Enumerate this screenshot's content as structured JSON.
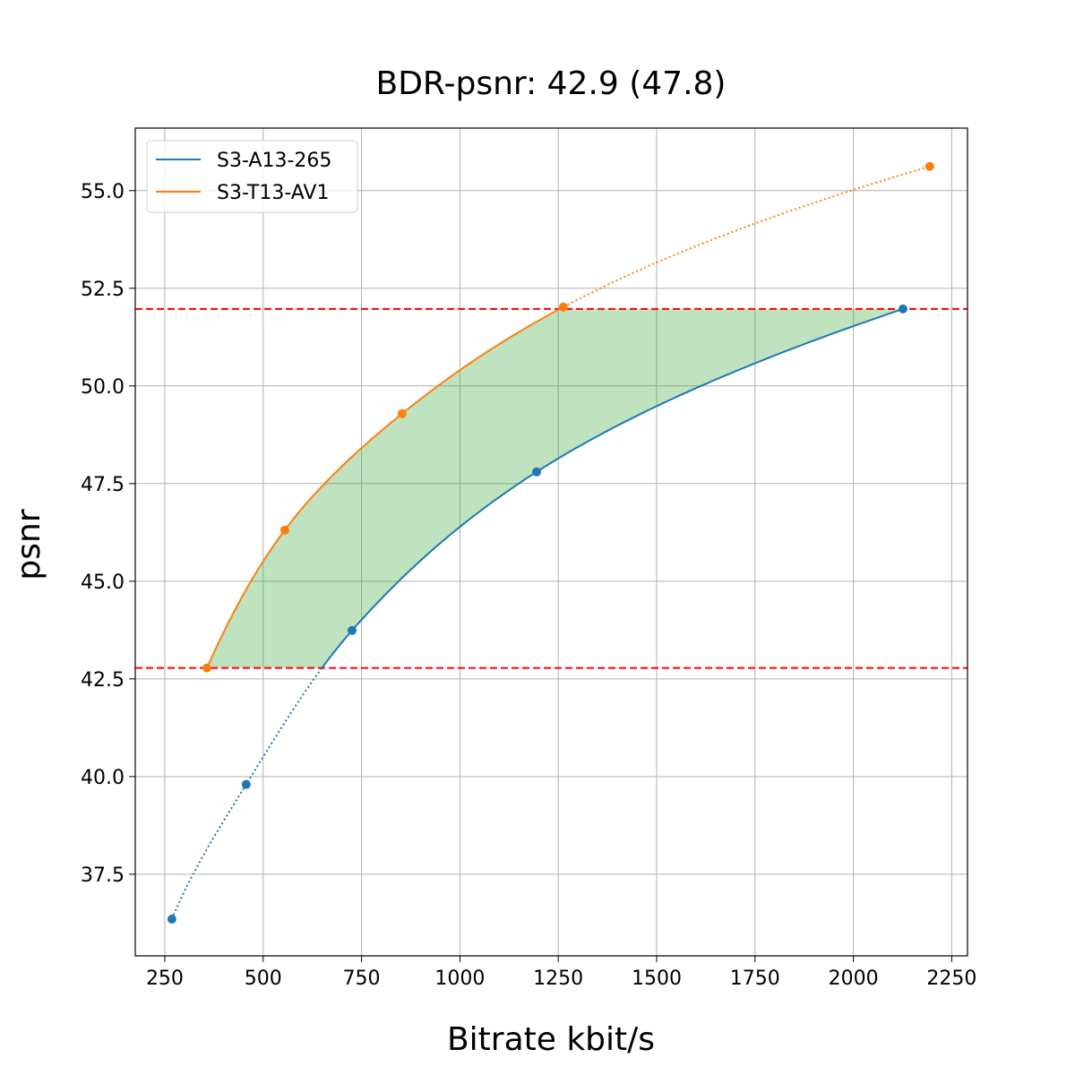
{
  "chart_data": {
    "type": "line",
    "title": "BDR-psnr: 42.9 (47.8)",
    "xlabel": "Bitrate kbit/s",
    "ylabel": "psnr",
    "xlim": [
      175,
      2290
    ],
    "ylim": [
      35.41,
      56.6
    ],
    "xticks": [
      250,
      500,
      750,
      1000,
      1250,
      1500,
      1750,
      2000,
      2250
    ],
    "xtick_labels": [
      "250",
      "500",
      "750",
      "1000",
      "1250",
      "1500",
      "1750",
      "2000",
      "2250"
    ],
    "yticks": [
      37.5,
      40.0,
      42.5,
      45.0,
      47.5,
      50.0,
      52.5,
      55.0
    ],
    "ytick_labels": [
      "37.5",
      "40.0",
      "42.5",
      "45.0",
      "47.5",
      "50.0",
      "52.5",
      "55.0"
    ],
    "grid": true,
    "legend_position": "top-left",
    "series": [
      {
        "name": "S3-A13-265",
        "color": "#1f77b4",
        "x": [
          268,
          457,
          726,
          1195,
          2126
        ],
        "y": [
          36.35,
          39.8,
          43.74,
          47.8,
          51.97
        ]
      },
      {
        "name": "S3-T13-AV1",
        "color": "#ff7f0e",
        "x": [
          357,
          555,
          853,
          1263,
          2194
        ],
        "y": [
          42.78,
          46.31,
          49.29,
          52.02,
          55.62
        ]
      }
    ],
    "reference_lines": {
      "y": [
        42.78,
        51.97
      ],
      "color": "#ff0000",
      "style": "dashed"
    },
    "fill_between": {
      "color": "#2ca02c",
      "opacity": 0.3,
      "y_range": [
        42.78,
        51.97
      ]
    }
  }
}
